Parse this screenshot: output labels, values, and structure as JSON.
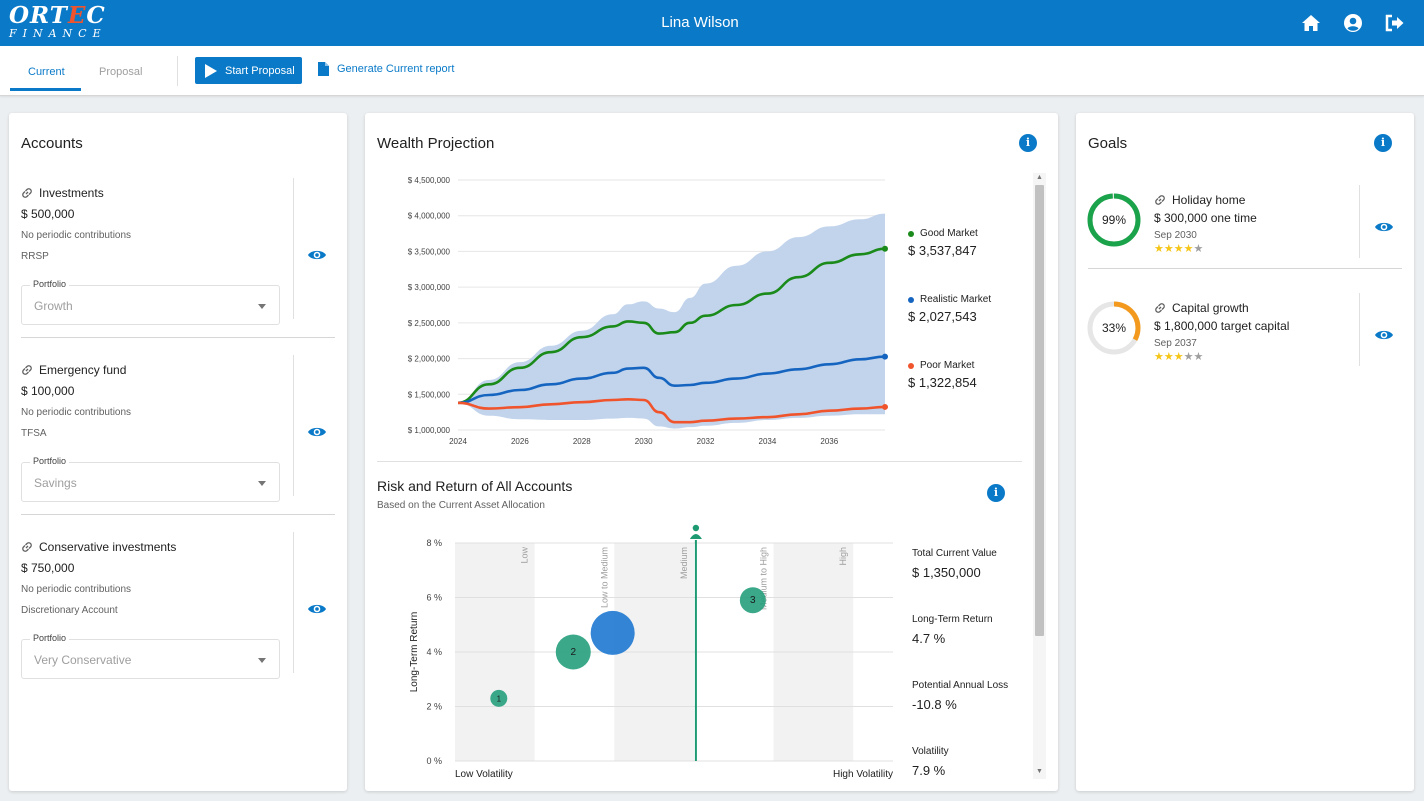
{
  "header": {
    "logo_top": "ORTEC",
    "logo_bottom": "FINANCE",
    "user_name": "Lina Wilson",
    "icons": [
      "home-icon",
      "account-circle-icon",
      "logout-icon"
    ]
  },
  "tabs": {
    "current": "Current",
    "proposal": "Proposal",
    "start_proposal": "Start Proposal",
    "generate_report": "Generate Current report"
  },
  "accounts": {
    "title": "Accounts",
    "portfolio_label": "Portfolio",
    "items": [
      {
        "name": "Investments",
        "amount": "$ 500,000",
        "contributions": "No periodic contributions",
        "type": "RRSP",
        "portfolio": "Growth"
      },
      {
        "name": "Emergency fund",
        "amount": "$ 100,000",
        "contributions": "No periodic contributions",
        "type": "TFSA",
        "portfolio": "Savings"
      },
      {
        "name": "Conservative investments",
        "amount": "$ 750,000",
        "contributions": "No periodic contributions",
        "type": "Discretionary Account",
        "portfolio": "Very Conservative"
      }
    ]
  },
  "wealth": {
    "title": "Wealth Projection",
    "legend": [
      {
        "label": "Good Market",
        "value": "$ 3,537,847",
        "color": "#1a8a1a"
      },
      {
        "label": "Realistic Market",
        "value": "$ 2,027,543",
        "color": "#1565c0"
      },
      {
        "label": "Poor Market",
        "value": "$ 1,322,854",
        "color": "#f0542d"
      }
    ]
  },
  "risk": {
    "title": "Risk and Return of All Accounts",
    "subtitle": "Based on the Current Asset Allocation",
    "stats": [
      {
        "label": "Total Current Value",
        "value": "$ 1,350,000"
      },
      {
        "label": "Long-Term Return",
        "value": "4.7 %"
      },
      {
        "label": "Potential Annual Loss",
        "value": "-10.8 %"
      },
      {
        "label": "Volatility",
        "value": "7.9 %"
      }
    ]
  },
  "goals": {
    "title": "Goals",
    "items": [
      {
        "name": "Holiday home",
        "percent": "99%",
        "pct_value": 0.99,
        "description": "$ 300,000 one time",
        "date": "Sep 2030",
        "stars": 4,
        "color": "#1aa34a"
      },
      {
        "name": "Capital growth",
        "percent": "33%",
        "pct_value": 0.33,
        "description": "$ 1,800,000 target capital",
        "date": "Sep 2037",
        "stars": 3,
        "color": "#f39a1e"
      }
    ]
  },
  "chart_data": [
    {
      "type": "area",
      "title": "Wealth Projection",
      "x": [
        2024,
        2025,
        2026,
        2027,
        2028,
        2029,
        2029.5,
        2030,
        2030.5,
        2031,
        2031.5,
        2032,
        2033,
        2034,
        2035,
        2036,
        2037,
        2037.8
      ],
      "ylim": [
        1000000,
        4500000
      ],
      "yticks": [
        "$ 4,500,000",
        "$ 4,000,000",
        "$ 3,500,000",
        "$ 3,000,000",
        "$ 2,500,000",
        "$ 2,000,000",
        "$ 1,500,000",
        "$ 1,000,000"
      ],
      "ytick_values": [
        4500000,
        4000000,
        3500000,
        3000000,
        2500000,
        2000000,
        1500000,
        1000000
      ],
      "xticks": [
        "2024",
        "2026",
        "2028",
        "2030",
        "2032",
        "2034",
        "2036"
      ],
      "xtick_values": [
        2024,
        2026,
        2028,
        2030,
        2032,
        2034,
        2036
      ],
      "band_upper": [
        1380000,
        1700000,
        1950000,
        2180000,
        2390000,
        2620000,
        2760000,
        2800000,
        2700000,
        2650000,
        2850000,
        3050000,
        3300000,
        3500000,
        3700000,
        3850000,
        3950000,
        4030000
      ],
      "band_lower": [
        1380000,
        1200000,
        1150000,
        1140000,
        1140000,
        1160000,
        1170000,
        1160000,
        1050000,
        1020000,
        1040000,
        1060000,
        1100000,
        1140000,
        1170000,
        1200000,
        1220000,
        1220000
      ],
      "series": [
        {
          "name": "Good Market",
          "color": "#1a8a1a",
          "values": [
            1380000,
            1640000,
            1870000,
            2090000,
            2300000,
            2450000,
            2520000,
            2500000,
            2350000,
            2370000,
            2500000,
            2600000,
            2750000,
            2910000,
            3140000,
            3340000,
            3460000,
            3537847
          ]
        },
        {
          "name": "Realistic Market",
          "color": "#1565c0",
          "values": [
            1380000,
            1490000,
            1560000,
            1640000,
            1720000,
            1800000,
            1860000,
            1870000,
            1730000,
            1620000,
            1630000,
            1660000,
            1720000,
            1790000,
            1850000,
            1920000,
            1990000,
            2027543
          ]
        },
        {
          "name": "Poor Market",
          "color": "#f0542d",
          "values": [
            1380000,
            1300000,
            1320000,
            1360000,
            1390000,
            1420000,
            1430000,
            1420000,
            1250000,
            1110000,
            1110000,
            1130000,
            1160000,
            1180000,
            1220000,
            1270000,
            1300000,
            1322854
          ]
        }
      ]
    },
    {
      "type": "scatter",
      "title": "Risk and Return of All Accounts",
      "xlabel_left": "Low Volatility",
      "xlabel_right": "High Volatility",
      "ylabel": "Long-Term Return",
      "ylim": [
        0,
        8
      ],
      "xlim": [
        0,
        10
      ],
      "yticks": [
        "8 %",
        "6 %",
        "4 %",
        "2 %",
        "0 %"
      ],
      "ytick_values": [
        8,
        6,
        4,
        2,
        0
      ],
      "zones": [
        "Low",
        "Low to Medium",
        "Medium",
        "Medium to High",
        "High"
      ],
      "current_volatility": 5.5,
      "points": [
        {
          "label": "1",
          "x": 1.0,
          "y": 2.3,
          "size": 1,
          "color": "#26a07c"
        },
        {
          "label": "2",
          "x": 2.7,
          "y": 4.0,
          "size": 3,
          "color": "#26a07c"
        },
        {
          "label": "",
          "x": 3.6,
          "y": 4.7,
          "size": 4,
          "color": "#1e78d2"
        },
        {
          "label": "3",
          "x": 6.8,
          "y": 5.9,
          "size": 2,
          "color": "#26a07c"
        }
      ]
    }
  ]
}
